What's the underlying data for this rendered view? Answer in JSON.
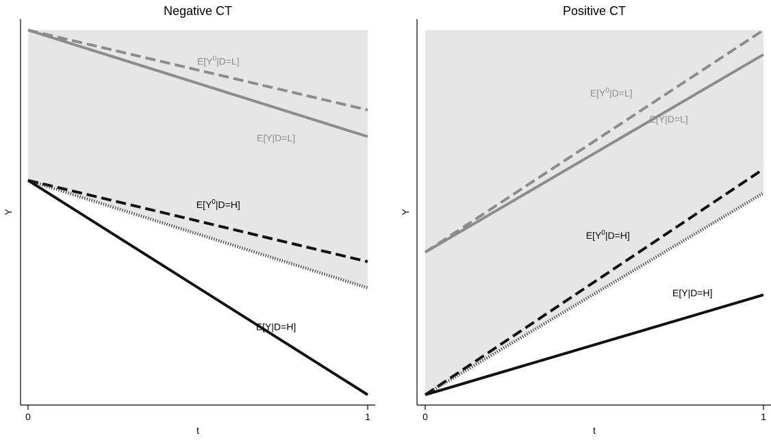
{
  "chart_data": [
    {
      "type": "line",
      "title": "Negative CT",
      "xlabel": "t",
      "ylabel": "Y",
      "xlim": [
        0,
        1
      ],
      "ylim": [
        0,
        100
      ],
      "x_ticks": [
        "0",
        "1"
      ],
      "y_ticks": [],
      "grid": false,
      "shaded_region": {
        "x": [
          0,
          1
        ],
        "upper": [
          100,
          100
        ],
        "lower": [
          58.8,
          29.3
        ],
        "color": "#e6e6e6"
      },
      "series": [
        {
          "x": [
            0,
            1
          ],
          "values": [
            100,
            78.1
          ],
          "color": "#8c8c8c",
          "style": "dashed"
        },
        {
          "x": [
            0,
            1
          ],
          "values": [
            100,
            70.8
          ],
          "color": "#8c8c8c",
          "style": "solid"
        },
        {
          "x": [
            0,
            1
          ],
          "values": [
            58.8,
            36.5
          ],
          "color": "#111111",
          "style": "dashed"
        },
        {
          "x": [
            0,
            1
          ],
          "values": [
            58.8,
            29.3
          ],
          "color": "#333333",
          "style": "dotted"
        },
        {
          "x": [
            0,
            1
          ],
          "values": [
            58.8,
            0
          ],
          "color": "#111111",
          "style": "solid"
        }
      ],
      "annotations": [
        {
          "text": "E[Y",
          "sup": "0",
          "after": "|D=L]",
          "x": 0.56,
          "y": 90.5,
          "color": "#8c8c8c"
        },
        {
          "text": "E[Y|D=L]",
          "x": 0.73,
          "y": 69.5,
          "color": "#8c8c8c"
        },
        {
          "text": "E[Y",
          "sup": "0",
          "after": "|D=H]",
          "x": 0.56,
          "y": 51.2,
          "color": "#000000"
        },
        {
          "text": "E[Y|D=H]",
          "x": 0.73,
          "y": 17.7,
          "color": "#000000"
        }
      ]
    },
    {
      "type": "line",
      "title": "Positive CT",
      "xlabel": "t",
      "ylabel": "Y",
      "xlim": [
        0,
        1
      ],
      "ylim": [
        0,
        100
      ],
      "x_ticks": [
        "0",
        "1"
      ],
      "y_ticks": [],
      "grid": false,
      "shaded_region": {
        "x": [
          0,
          1
        ],
        "upper": [
          100,
          100
        ],
        "lower": [
          0,
          55.3
        ],
        "color": "#e6e6e6"
      },
      "series": [
        {
          "x": [
            0,
            1
          ],
          "values": [
            39.1,
            100
          ],
          "color": "#8c8c8c",
          "style": "dashed"
        },
        {
          "x": [
            0,
            1
          ],
          "values": [
            39.1,
            93.3
          ],
          "color": "#8c8c8c",
          "style": "solid"
        },
        {
          "x": [
            0,
            1
          ],
          "values": [
            0,
            61.9
          ],
          "color": "#111111",
          "style": "dashed"
        },
        {
          "x": [
            0,
            1
          ],
          "values": [
            0,
            55.3
          ],
          "color": "#333333",
          "style": "dotted"
        },
        {
          "x": [
            0,
            1
          ],
          "values": [
            0,
            27.4
          ],
          "color": "#111111",
          "style": "solid"
        }
      ],
      "annotations": [
        {
          "text": "E[Y",
          "sup": "0",
          "after": "|D=L]",
          "x": 0.55,
          "y": 81.8,
          "color": "#8c8c8c"
        },
        {
          "text": "E[Y|D=L]",
          "x": 0.72,
          "y": 74.7,
          "color": "#8c8c8c"
        },
        {
          "text": "E[Y",
          "sup": "0",
          "after": "|D=H]",
          "x": 0.54,
          "y": 42.8,
          "color": "#000000"
        },
        {
          "text": "E[Y|D=H]",
          "x": 0.79,
          "y": 27.0,
          "color": "#000000"
        }
      ]
    }
  ]
}
